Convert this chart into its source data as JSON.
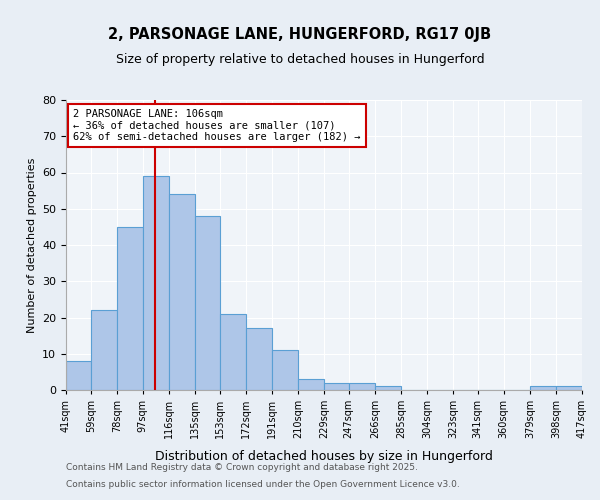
{
  "title1": "2, PARSONAGE LANE, HUNGERFORD, RG17 0JB",
  "title2": "Size of property relative to detached houses in Hungerford",
  "xlabel": "Distribution of detached houses by size in Hungerford",
  "ylabel": "Number of detached properties",
  "bar_edges": [
    41,
    59,
    78,
    97,
    116,
    135,
    153,
    172,
    191,
    210,
    229,
    247,
    266,
    285,
    304,
    323,
    341,
    360,
    379,
    398,
    417
  ],
  "bar_heights": [
    8,
    22,
    45,
    59,
    54,
    48,
    21,
    17,
    11,
    3,
    2,
    2,
    1,
    0,
    0,
    0,
    0,
    0,
    1,
    1
  ],
  "bar_color": "#aec6e8",
  "bar_edge_color": "#5a9fd4",
  "property_size": 106,
  "vline_color": "#cc0000",
  "annotation_text": "2 PARSONAGE LANE: 106sqm\n← 36% of detached houses are smaller (107)\n62% of semi-detached houses are larger (182) →",
  "annotation_box_color": "#ffffff",
  "annotation_box_edgecolor": "#cc0000",
  "ylim": [
    0,
    80
  ],
  "yticks": [
    0,
    10,
    20,
    30,
    40,
    50,
    60,
    70,
    80
  ],
  "footer1": "Contains HM Land Registry data © Crown copyright and database right 2025.",
  "footer2": "Contains public sector information licensed under the Open Government Licence v3.0.",
  "bg_color": "#e8eef5",
  "plot_bg_color": "#f0f4f9"
}
